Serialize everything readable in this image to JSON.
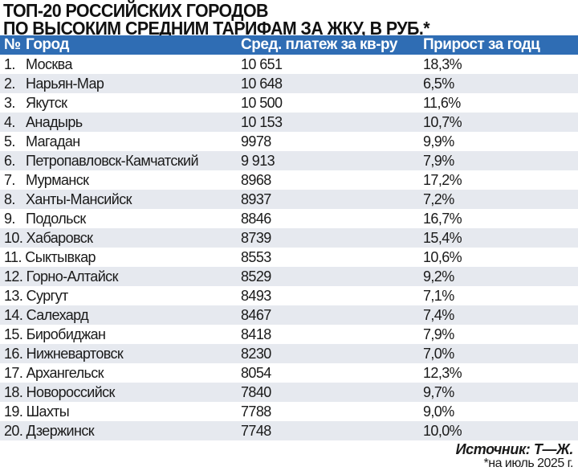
{
  "title": {
    "line1": "ТОП-20 РОССИЙСКИХ ГОРОДОВ",
    "line2": "ПО ВЫСОКИМ СРЕДНИМ ТАРИФАМ ЗА ЖКУ, В РУБ.*"
  },
  "header": {
    "num": "№",
    "city": "Город",
    "payment": "Сред. платеж за кв-ру",
    "growth": "Прирост за годц"
  },
  "rows": [
    {
      "n": "1.",
      "city": "Москва",
      "payment": "10 651",
      "growth": "18,3%"
    },
    {
      "n": "2.",
      "city": "Нарьян-Мар",
      "payment": "10 648",
      "growth": "6,5%"
    },
    {
      "n": "3.",
      "city": "Якутск",
      "payment": "10 500",
      "growth": "11,6%"
    },
    {
      "n": "4.",
      "city": "Анадырь",
      "payment": "10 153",
      "growth": "10,7%"
    },
    {
      "n": "5.",
      "city": "Магадан",
      "payment": "9978",
      "growth": "9,9%"
    },
    {
      "n": "6.",
      "city": "Петропавловск-Камчатский",
      "payment": "9 913",
      "growth": "7,9%"
    },
    {
      "n": "7.",
      "city": "Мурманск",
      "payment": "8968",
      "growth": "17,2%"
    },
    {
      "n": "8.",
      "city": "Ханты-Мансийск",
      "payment": "8937",
      "growth": "7,2%"
    },
    {
      "n": "9.",
      "city": "Подольск",
      "payment": "8846",
      "growth": "16,7%"
    },
    {
      "n": "10.",
      "city": "Хабаровск",
      "payment": "8739",
      "growth": "15,4%"
    },
    {
      "n": "11.",
      "city": "Сыктывкар",
      "payment": "8553",
      "growth": "10,6%"
    },
    {
      "n": "12.",
      "city": "Горно-Алтайск",
      "payment": "8529",
      "growth": "9,2%"
    },
    {
      "n": "13.",
      "city": "Сургут",
      "payment": "8493",
      "growth": "7,1%"
    },
    {
      "n": "14.",
      "city": "Салехард",
      "payment": "8467",
      "growth": "7,4%"
    },
    {
      "n": "15.",
      "city": "Биробиджан",
      "payment": "8418",
      "growth": "7,9%"
    },
    {
      "n": "16.",
      "city": "Нижневартовск",
      "payment": "8230",
      "growth": "7,0%"
    },
    {
      "n": "17.",
      "city": "Архангельск",
      "payment": "8054",
      "growth": "12,3%"
    },
    {
      "n": "18.",
      "city": "Новороссийск",
      "payment": "7840",
      "growth": "9,7%"
    },
    {
      "n": "19.",
      "city": "Шахты",
      "payment": "7788",
      "growth": "9,0%"
    },
    {
      "n": "20.",
      "city": "Дзержинск",
      "payment": "7748",
      "growth": "10,0%"
    }
  ],
  "source": "Источник: Т—Ж.",
  "note": "*на июль 2025 г.",
  "colors": {
    "header": "#2f6db4",
    "alt_row": "#e6e9ef"
  }
}
